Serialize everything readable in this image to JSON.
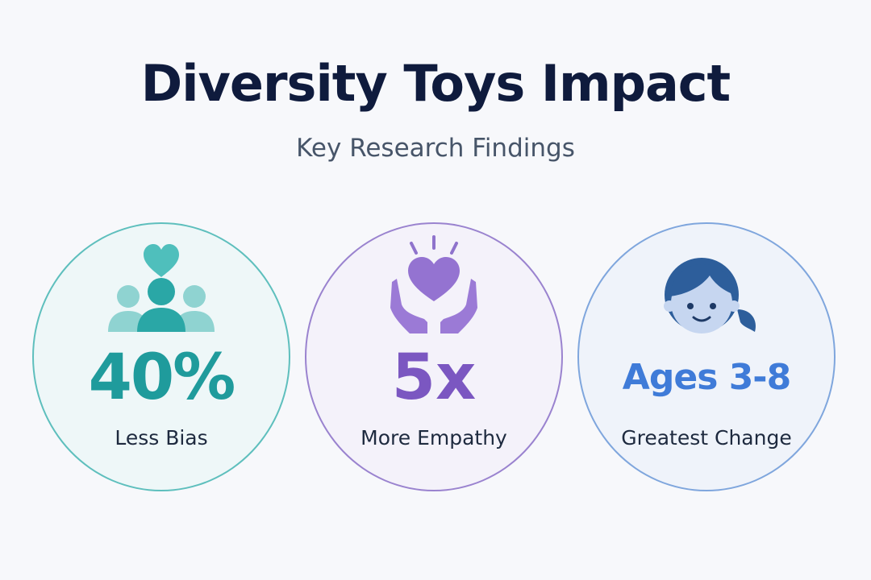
{
  "header": {
    "title": "Diversity Toys Impact",
    "subtitle": "Key Research Findings"
  },
  "findings": [
    {
      "value": "40%",
      "label": "Less Bias",
      "icon": "diverse-people-heart-icon",
      "color": "#1f9b9c",
      "border": "#5ebfbd"
    },
    {
      "value": "5x",
      "label": "More Empathy",
      "icon": "hands-heart-icon",
      "color": "#7b57c1",
      "border": "#9a83cf"
    },
    {
      "value": "Ages 3-8",
      "label": "Greatest Change",
      "icon": "child-face-icon",
      "color": "#3f7bd8",
      "border": "#7fa6dd"
    }
  ]
}
